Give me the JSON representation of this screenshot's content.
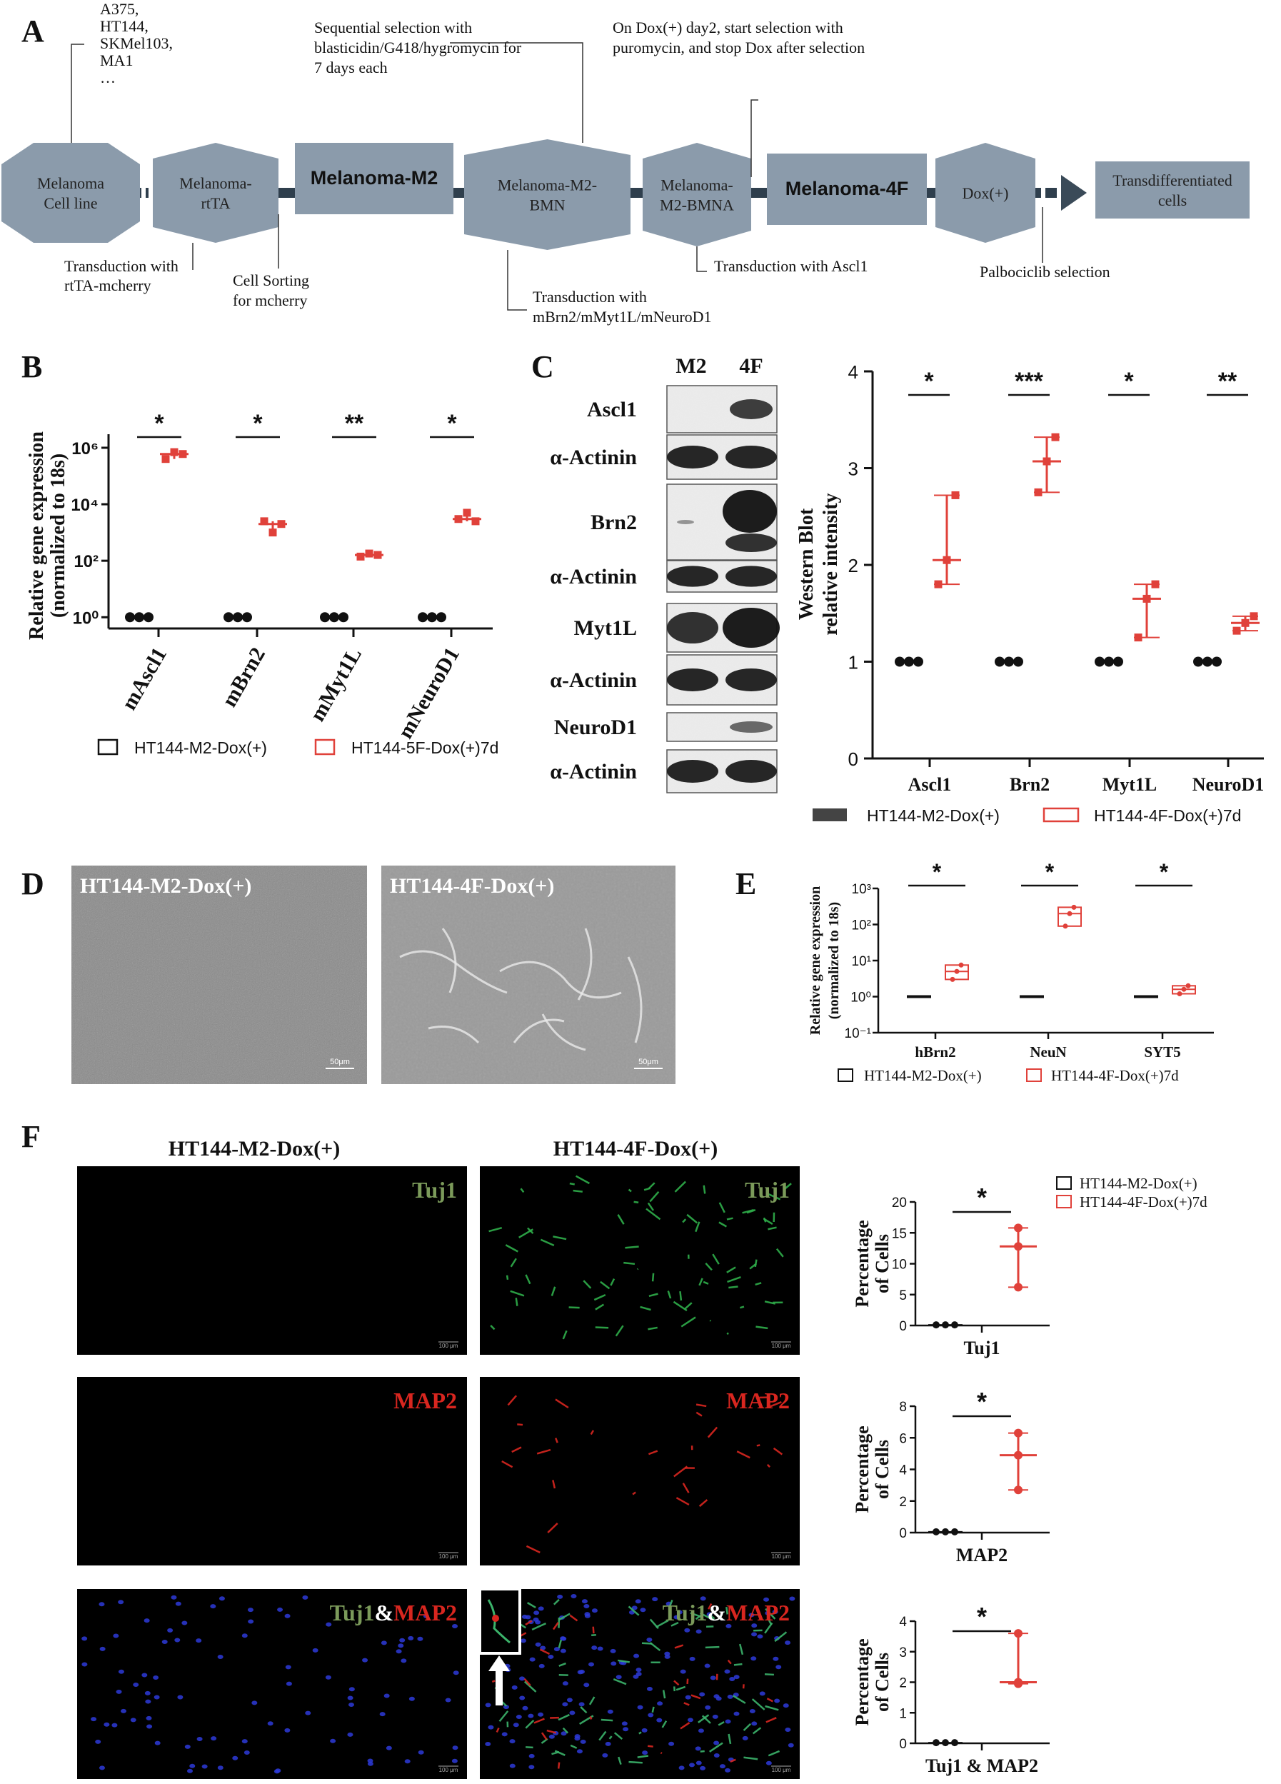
{
  "figure": {
    "panel_letters": [
      "A",
      "B",
      "C",
      "D",
      "E",
      "F"
    ],
    "colors": {
      "red": "#e0413a",
      "black": "#111111",
      "hex": "#8b9bab",
      "hexDark": "#7d8da0",
      "boxDark": "#2f3f4d",
      "arrow": "#3a4a58"
    }
  },
  "panel_a": {
    "cell_lines": [
      "A375,",
      "HT144,",
      "SKMel103,",
      "MA1",
      "…"
    ],
    "stages": [
      {
        "lines": [
          "Melanoma",
          "Cell line"
        ]
      },
      {
        "lines": [
          "Melanoma-",
          "rtTA"
        ]
      },
      {
        "lines": [
          "Melanoma-M2"
        ]
      },
      {
        "lines": [
          "Melanoma-M2-",
          "BMN"
        ]
      },
      {
        "lines": [
          "Melanoma-",
          "M2-BMNA"
        ]
      },
      {
        "lines": [
          "Melanoma-4F"
        ]
      },
      {
        "lines": [
          "Dox(+)"
        ]
      },
      {
        "lines": [
          "Transdifferentiated",
          "cells"
        ]
      }
    ],
    "notes": {
      "sequential": [
        "Sequential selection with",
        "blasticidin/G418/hygromycin for",
        "7 days each"
      ],
      "dox_day2": [
        "On Dox(+) day2, start selection with",
        "puromycin, and stop Dox after selection"
      ],
      "rtta": [
        "Transduction with",
        "rtTA-mcherry"
      ],
      "sorting": [
        "Cell Sorting",
        "for mcherry"
      ],
      "mbrn2": [
        "Transduction with",
        "mBrn2/mMyt1L/mNeuroD1"
      ],
      "ascl1": [
        "Transduction with Ascl1"
      ],
      "palbo": [
        "Palbociclib selection"
      ]
    }
  },
  "chart_data": [
    {
      "id": "B",
      "type": "scatter",
      "ylabel": "Relative gene expression (normalized to 18s)",
      "yscale": "log",
      "ylim": [
        0.3,
        3000000
      ],
      "yticks": [
        "10⁰",
        "10²",
        "10⁴",
        "10⁶"
      ],
      "categories": [
        "mAscl1",
        "mBrn2",
        "mMyt1L",
        "mNeuroD1"
      ],
      "significance": [
        "*",
        "*",
        "**",
        "*"
      ],
      "legend": [
        "HT144-M2-Dox(+)",
        "HT144-5F-Dox(+)7d"
      ],
      "series": [
        {
          "name": "HT144-M2-Dox(+)",
          "values": [
            [
              1,
              1,
              1
            ],
            [
              1,
              1,
              1
            ],
            [
              1,
              1,
              1
            ],
            [
              1,
              1,
              1
            ]
          ]
        },
        {
          "name": "HT144-5F-Dox(+)7d",
          "values": [
            [
              400000,
              700000,
              600000
            ],
            [
              2500,
              1000,
              2000
            ],
            [
              140,
              180,
              160
            ],
            [
              3000,
              5000,
              2500
            ]
          ]
        }
      ]
    },
    {
      "id": "C_blot",
      "columns": [
        "M2",
        "4F"
      ],
      "rows": [
        "Ascl1",
        "α-Actinin",
        "Brn2",
        "α-Actinin",
        "Myt1L",
        "α-Actinin",
        "NeuroD1",
        "α-Actinin"
      ]
    },
    {
      "id": "C",
      "type": "scatter",
      "ylabel": "Western Blot relative intensity",
      "ylim": [
        0,
        4
      ],
      "yticks": [
        "0",
        "1",
        "2",
        "3",
        "4"
      ],
      "categories": [
        "Ascl1",
        "Brn2",
        "Myt1L",
        "NeuroD1"
      ],
      "significance": [
        "*",
        "***",
        "*",
        "**"
      ],
      "legend": [
        "HT144-M2-Dox(+)",
        "HT144-4F-Dox(+)7d"
      ],
      "series": [
        {
          "name": "HT144-M2-Dox(+)",
          "values": [
            [
              1,
              1,
              1
            ],
            [
              1,
              1,
              1
            ],
            [
              1,
              1,
              1
            ],
            [
              1,
              1,
              1
            ]
          ]
        },
        {
          "name": "HT144-4F-Dox(+)7d",
          "values": [
            [
              1.8,
              2.05,
              2.72
            ],
            [
              2.75,
              3.07,
              3.32
            ],
            [
              1.25,
              1.65,
              1.8
            ],
            [
              1.32,
              1.4,
              1.47
            ]
          ]
        }
      ]
    },
    {
      "id": "D",
      "images": [
        "HT144-M2-Dox(+)",
        "HT144-4F-Dox(+)"
      ],
      "scalebar": "50μm"
    },
    {
      "id": "E",
      "type": "box",
      "ylabel": "Relative gene expression (normalized to 18s)",
      "yscale": "log",
      "ylim": [
        0.1,
        1000
      ],
      "yticks": [
        "10⁻¹",
        "10⁰",
        "10¹",
        "10²",
        "10³"
      ],
      "categories": [
        "hBrn2",
        "NeuN",
        "SYT5"
      ],
      "significance": [
        "*",
        "*",
        "*"
      ],
      "legend": [
        "HT144-M2-Dox(+)",
        "HT144-4F-Dox(+)7d"
      ],
      "series": [
        {
          "name": "HT144-M2-Dox(+)",
          "values": [
            [
              1,
              1,
              1
            ],
            [
              1,
              1,
              1
            ],
            [
              1,
              1,
              1
            ]
          ]
        },
        {
          "name": "HT144-4F-Dox(+)7d",
          "values": [
            [
              3,
              5,
              7.5
            ],
            [
              90,
              200,
              300
            ],
            [
              1.2,
              1.6,
              2
            ]
          ]
        }
      ]
    },
    {
      "id": "F_images",
      "columns": [
        "HT144-M2-Dox(+)",
        "HT144-4F-Dox(+)"
      ],
      "labels": [
        [
          "Tuj1"
        ],
        [
          "MAP2"
        ],
        [
          "Tuj1",
          "&",
          "MAP2"
        ]
      ],
      "scalebar": "100 μm"
    },
    {
      "id": "F1",
      "type": "scatter",
      "ylabel": [
        "Percentage",
        "of Cells"
      ],
      "ylim": [
        0,
        20
      ],
      "yticks": [
        "0",
        "5",
        "10",
        "15",
        "20"
      ],
      "xlabel": "Tuj1",
      "significance": "*",
      "legend": [
        "HT144-M2-Dox(+)",
        "HT144-4F-Dox(+)7d"
      ],
      "series": [
        {
          "name": "HT144-M2-Dox(+)",
          "values": [
            0.1,
            0.1,
            0.1
          ]
        },
        {
          "name": "HT144-4F-Dox(+)7d",
          "values": [
            6.2,
            12.8,
            15.8
          ]
        }
      ]
    },
    {
      "id": "F2",
      "type": "scatter",
      "ylabel": [
        "Percentage",
        "of Cells"
      ],
      "ylim": [
        0,
        8
      ],
      "yticks": [
        "0",
        "2",
        "4",
        "6",
        "8"
      ],
      "xlabel": "MAP2",
      "significance": "*",
      "series": [
        {
          "name": "HT144-M2-Dox(+)",
          "values": [
            0.05,
            0.05,
            0.05
          ]
        },
        {
          "name": "HT144-4F-Dox(+)7d",
          "values": [
            2.7,
            4.9,
            6.3
          ]
        }
      ]
    },
    {
      "id": "F3",
      "type": "scatter",
      "ylabel": [
        "Percentage",
        "of Cells"
      ],
      "ylim": [
        0,
        4
      ],
      "yticks": [
        "0",
        "1",
        "2",
        "3",
        "4"
      ],
      "xlabel": "Tuj1 & MAP2",
      "significance": "*",
      "series": [
        {
          "name": "HT144-M2-Dox(+)",
          "values": [
            0.02,
            0.02,
            0.02
          ]
        },
        {
          "name": "HT144-4F-Dox(+)7d",
          "values": [
            1.95,
            2.0,
            3.6
          ]
        }
      ]
    }
  ]
}
